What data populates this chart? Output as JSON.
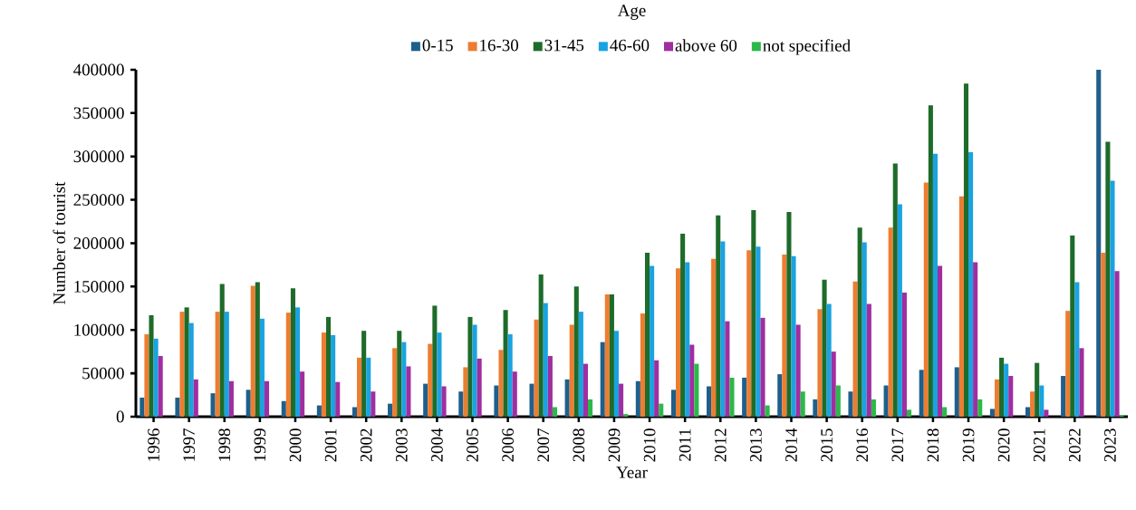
{
  "chart_data": {
    "type": "bar",
    "title": "Age",
    "xlabel": "Year",
    "ylabel": "Number of tourist",
    "categories": [
      "1996",
      "1997",
      "1998",
      "1999",
      "2000",
      "2001",
      "2002",
      "2003",
      "2004",
      "2005",
      "2006",
      "2007",
      "2008",
      "2009",
      "2010",
      "2011",
      "2012",
      "2013",
      "2014",
      "2015",
      "2016",
      "2017",
      "2018",
      "2019",
      "2020",
      "2021",
      "2022",
      "2023"
    ],
    "series": [
      {
        "name": "0-15",
        "color": "#1f5f8b",
        "values": [
          22000,
          22000,
          27000,
          31000,
          18000,
          13000,
          11000,
          15000,
          38000,
          29000,
          36000,
          38000,
          43000,
          86000,
          41000,
          31000,
          35000,
          45000,
          49000,
          20000,
          29000,
          36000,
          54000,
          57000,
          9000,
          11000,
          47000,
          400000
        ]
      },
      {
        "name": "16-30",
        "color": "#ed7d31",
        "values": [
          95000,
          121000,
          121000,
          151000,
          120000,
          97000,
          68000,
          79000,
          84000,
          57000,
          77000,
          112000,
          106000,
          141000,
          119000,
          171000,
          182000,
          192000,
          187000,
          124000,
          156000,
          218000,
          270000,
          254000,
          43000,
          29000,
          122000,
          189000
        ]
      },
      {
        "name": "31-45",
        "color": "#1e6b2a",
        "values": [
          117000,
          126000,
          153000,
          155000,
          148000,
          115000,
          99000,
          99000,
          128000,
          115000,
          123000,
          164000,
          150000,
          141000,
          189000,
          211000,
          232000,
          238000,
          236000,
          158000,
          218000,
          292000,
          359000,
          384000,
          68000,
          62000,
          209000,
          317000
        ]
      },
      {
        "name": "46-60",
        "color": "#1aa3e0",
        "values": [
          90000,
          108000,
          121000,
          113000,
          126000,
          94000,
          68000,
          86000,
          97000,
          106000,
          95000,
          131000,
          121000,
          99000,
          174000,
          178000,
          202000,
          196000,
          185000,
          130000,
          201000,
          245000,
          303000,
          305000,
          61000,
          36000,
          155000,
          272000
        ]
      },
      {
        "name": "above 60",
        "color": "#a02ea0",
        "values": [
          70000,
          43000,
          41000,
          41000,
          52000,
          40000,
          29000,
          58000,
          35000,
          67000,
          52000,
          70000,
          61000,
          38000,
          65000,
          83000,
          110000,
          114000,
          106000,
          75000,
          130000,
          143000,
          174000,
          178000,
          47000,
          8000,
          79000,
          168000
        ]
      },
      {
        "name": "not specified",
        "color": "#2db84a",
        "values": [
          null,
          null,
          null,
          null,
          null,
          null,
          null,
          null,
          null,
          null,
          null,
          11000,
          20000,
          3000,
          15000,
          61000,
          45000,
          13000,
          29000,
          36000,
          20000,
          8000,
          11000,
          20000,
          null,
          null,
          null,
          2000
        ]
      }
    ],
    "ylim": [
      0,
      400000
    ],
    "yticks": [
      0,
      50000,
      100000,
      150000,
      200000,
      250000,
      300000,
      350000,
      400000
    ],
    "legend": "top"
  }
}
